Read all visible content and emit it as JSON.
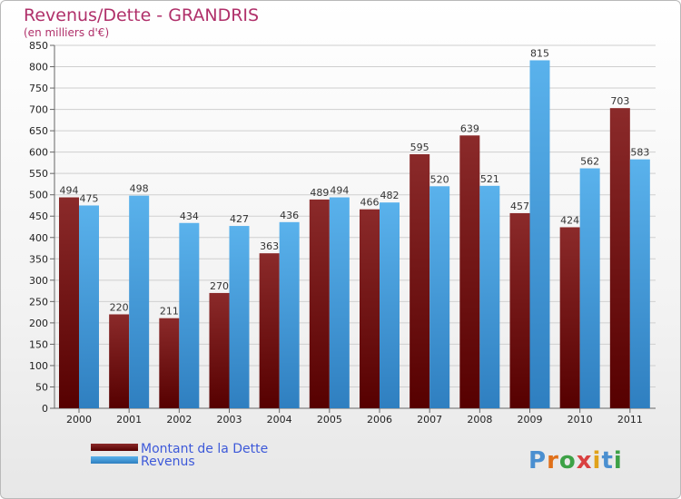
{
  "header": {
    "title": "Revenus/Dette - GRANDRIS",
    "subtitle": "(en milliers d'€)"
  },
  "logo": {
    "text": "Proxiti"
  },
  "colors": {
    "dette": "#7a1111",
    "revenus": "#4ea8e6"
  },
  "chart_data": {
    "type": "bar",
    "title": "Revenus/Dette - GRANDRIS",
    "subtitle": "(en milliers d'€)",
    "categories": [
      "2000",
      "2001",
      "2002",
      "2003",
      "2004",
      "2005",
      "2006",
      "2007",
      "2008",
      "2009",
      "2010",
      "2011"
    ],
    "series": [
      {
        "name": "Montant de la Dette",
        "values": [
          494,
          220,
          211,
          270,
          363,
          489,
          466,
          595,
          639,
          457,
          424,
          703
        ]
      },
      {
        "name": "Revenus",
        "values": [
          475,
          498,
          434,
          427,
          436,
          494,
          482,
          520,
          521,
          815,
          562,
          583
        ]
      }
    ],
    "ylim": [
      0,
      850
    ],
    "ytick_step": 50,
    "grid": true,
    "legend": "bottom-left"
  }
}
